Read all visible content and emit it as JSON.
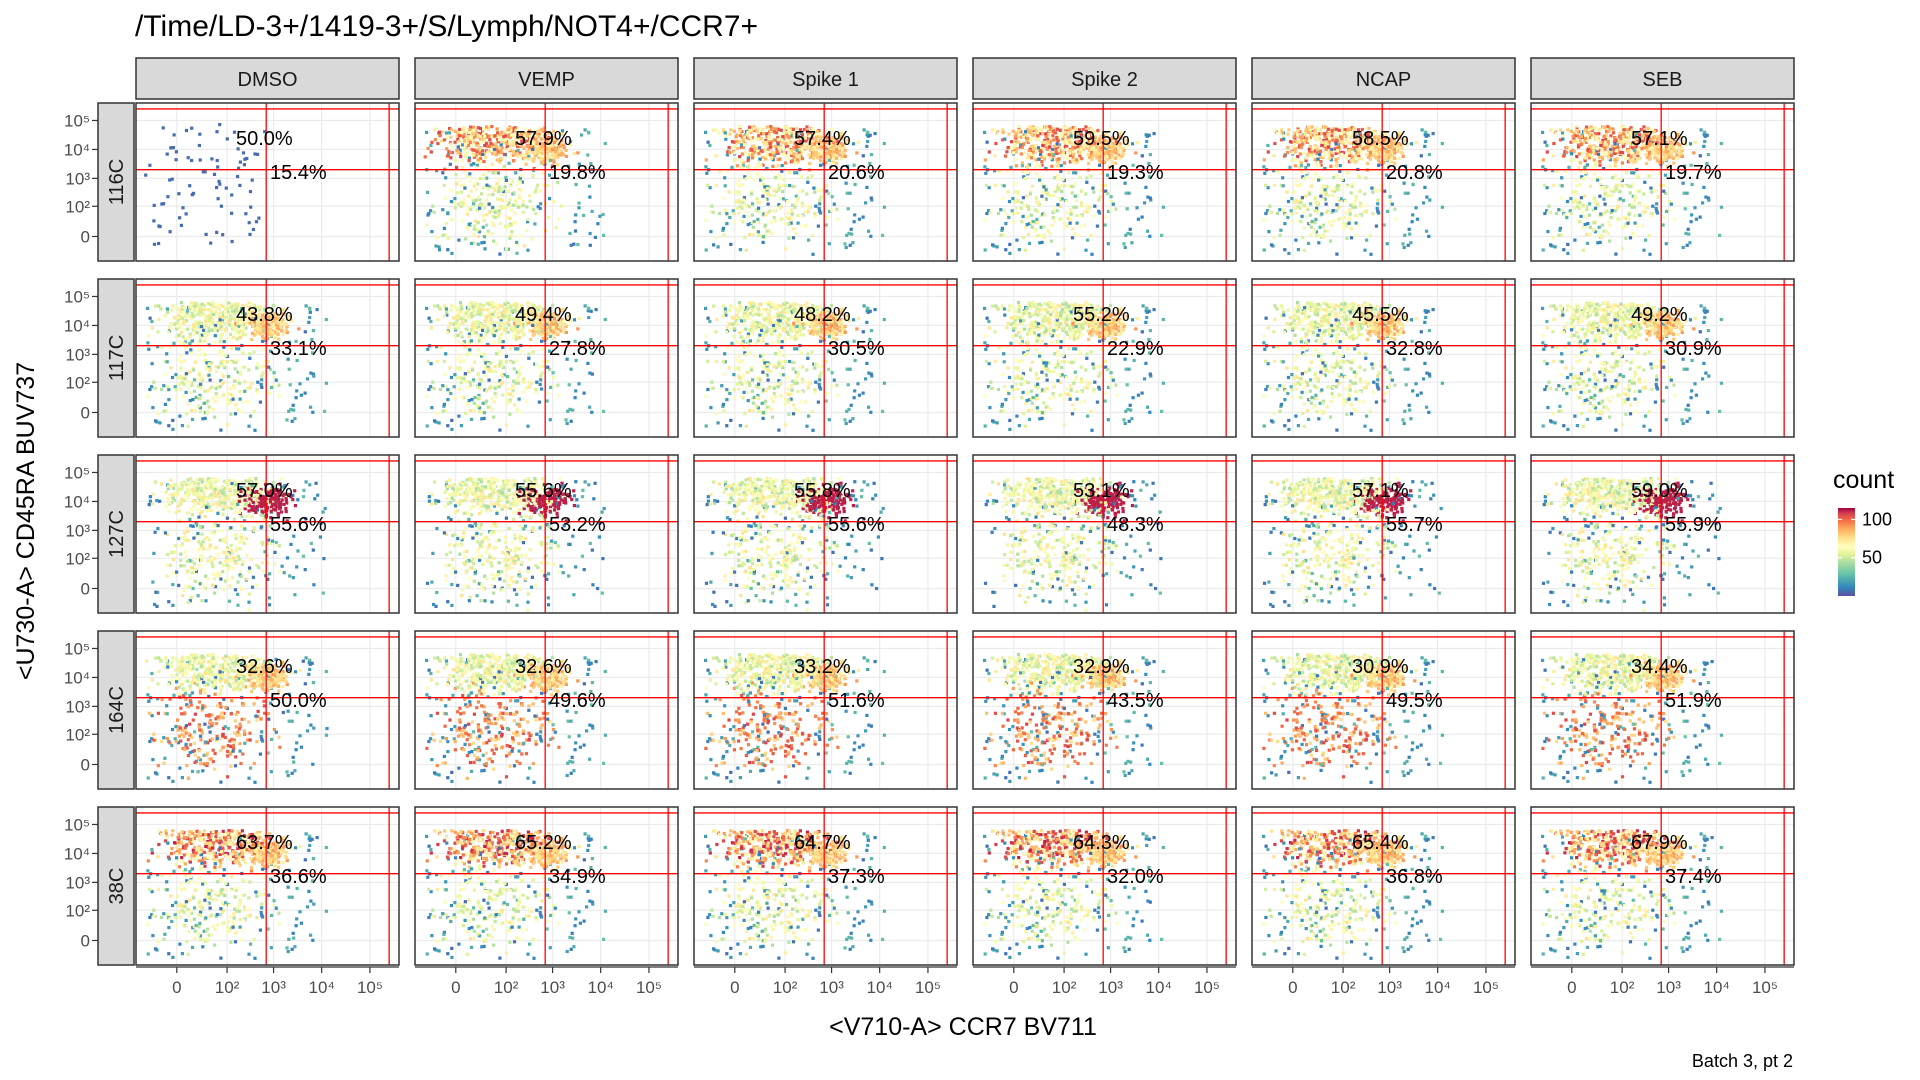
{
  "page_title": "/Time/LD-3+/1419-3+/S/Lymph/NOT4+/CCR7+",
  "caption": "Batch 3, pt 2",
  "chart_data": {
    "type": "heatmap",
    "title": "/Time/LD-3+/1419-3+/S/Lymph/NOT4+/CCR7+",
    "xlabel": "<V710-A> CCR7 BV711",
    "ylabel": "<U730-A> CD45RA BUV737",
    "column_facets": [
      "DMSO",
      "VEMP",
      "Spike 1",
      "Spike 2",
      "NCAP",
      "SEB"
    ],
    "row_facets": [
      "116C",
      "117C",
      "127C",
      "164C",
      "38C"
    ],
    "x_ticks": [
      {
        "v": 0,
        "label": "0"
      },
      {
        "v": 100,
        "label": "10²"
      },
      {
        "v": 1000,
        "label": "10³"
      },
      {
        "v": 10000,
        "label": "10⁴"
      },
      {
        "v": 100000,
        "label": "10⁵"
      }
    ],
    "y_ticks": [
      {
        "v": 0,
        "label": "0"
      },
      {
        "v": 100,
        "label": "10²"
      },
      {
        "v": 1000,
        "label": "10³"
      },
      {
        "v": 10000,
        "label": "10⁴"
      },
      {
        "v": 100000,
        "label": "10⁵"
      }
    ],
    "gate_x": 700,
    "gate_y": 2000,
    "percentages": [
      [
        [
          "50.0%",
          "15.4%"
        ],
        [
          "57.9%",
          "19.8%"
        ],
        [
          "57.4%",
          "20.6%"
        ],
        [
          "59.5%",
          "19.3%"
        ],
        [
          "58.5%",
          "20.8%"
        ],
        [
          "57.1%",
          "19.7%"
        ]
      ],
      [
        [
          "43.8%",
          "33.1%"
        ],
        [
          "49.4%",
          "27.8%"
        ],
        [
          "48.2%",
          "30.5%"
        ],
        [
          "55.2%",
          "22.9%"
        ],
        [
          "45.5%",
          "32.8%"
        ],
        [
          "49.2%",
          "30.9%"
        ]
      ],
      [
        [
          "57.0%",
          "55.6%"
        ],
        [
          "55.6%",
          "53.2%"
        ],
        [
          "55.8%",
          "55.6%"
        ],
        [
          "53.1%",
          "48.3%"
        ],
        [
          "57.1%",
          "55.7%"
        ],
        [
          "59.0%",
          "55.9%"
        ]
      ],
      [
        [
          "32.6%",
          "50.0%"
        ],
        [
          "32.6%",
          "49.6%"
        ],
        [
          "33.2%",
          "51.6%"
        ],
        [
          "32.9%",
          "43.5%"
        ],
        [
          "30.9%",
          "49.5%"
        ],
        [
          "34.4%",
          "51.9%"
        ]
      ],
      [
        [
          "63.7%",
          "36.6%"
        ],
        [
          "65.2%",
          "34.9%"
        ],
        [
          "64.7%",
          "37.3%"
        ],
        [
          "64.3%",
          "32.0%"
        ],
        [
          "65.4%",
          "36.8%"
        ],
        [
          "67.9%",
          "37.4%"
        ]
      ]
    ],
    "legend": {
      "title": "count",
      "ticks": [
        {
          "v": 100,
          "label": "100"
        },
        {
          "v": 50,
          "label": "50"
        }
      ],
      "max": 115,
      "colors": [
        "#5e4fa2",
        "#3288bd",
        "#66c2a5",
        "#abdda4",
        "#e6f598",
        "#ffffbf",
        "#fee08b",
        "#fdae61",
        "#f46d43",
        "#d53e4f",
        "#9e0142"
      ]
    },
    "gate_color": "#ff0000"
  }
}
